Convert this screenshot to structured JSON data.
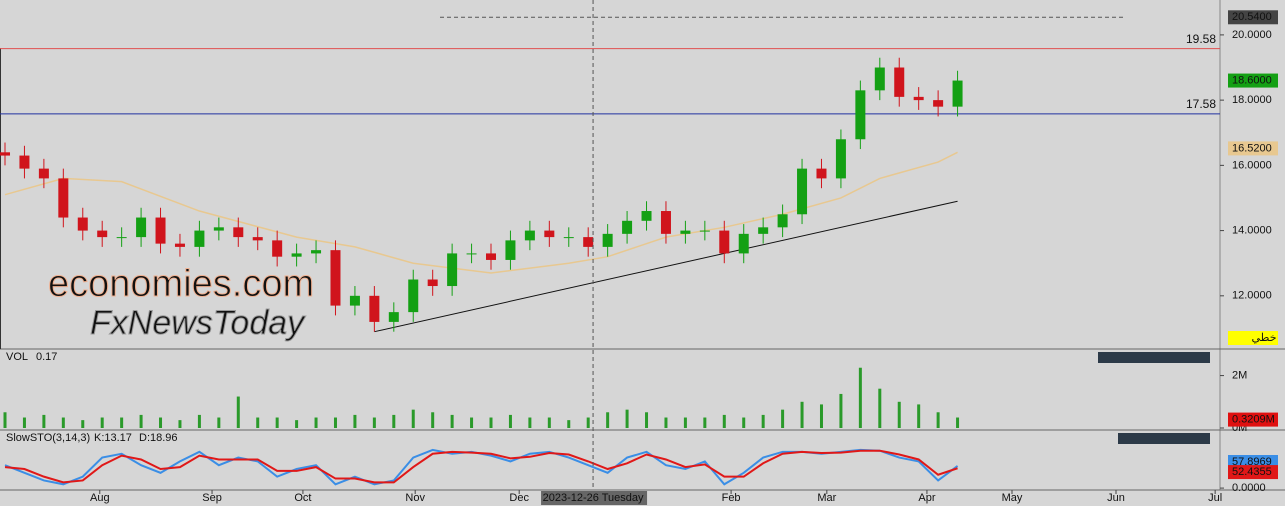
{
  "chart_data": [
    {
      "type": "candlestick",
      "x": [
        0,
        4,
        8,
        12,
        16,
        20,
        24,
        28,
        32,
        36,
        40,
        44,
        48,
        52,
        56,
        60,
        64,
        68,
        72,
        76,
        80,
        84,
        88,
        92,
        96,
        100,
        104,
        108,
        112,
        116,
        120,
        124,
        128,
        132,
        136,
        140,
        144,
        148,
        152,
        156,
        160,
        164,
        168,
        172,
        176,
        180,
        184,
        188,
        192,
        196
      ],
      "open": [
        16.4,
        16.3,
        15.9,
        15.6,
        14.4,
        14.0,
        13.8,
        13.8,
        14.4,
        13.6,
        13.5,
        14.0,
        14.1,
        13.8,
        13.7,
        13.2,
        13.3,
        13.4,
        11.7,
        12.0,
        11.2,
        11.5,
        12.5,
        12.3,
        13.3,
        13.3,
        13.1,
        13.7,
        14.0,
        13.8,
        13.8,
        13.5,
        13.9,
        14.3,
        14.6,
        13.9,
        14.0,
        14.0,
        13.3,
        13.9,
        14.1,
        14.5,
        15.9,
        15.6,
        16.8,
        18.3,
        19.0,
        18.1,
        18.0,
        17.8
      ],
      "high": [
        16.7,
        16.6,
        16.2,
        15.9,
        14.7,
        14.3,
        14.1,
        14.7,
        14.7,
        13.9,
        14.3,
        14.4,
        14.4,
        14.1,
        14.0,
        13.6,
        13.7,
        13.7,
        12.3,
        12.3,
        11.8,
        12.8,
        12.8,
        13.6,
        13.6,
        13.6,
        14.0,
        14.3,
        14.3,
        14.1,
        14.1,
        14.2,
        14.6,
        14.9,
        14.9,
        14.3,
        14.3,
        14.3,
        14.2,
        14.4,
        14.8,
        16.2,
        16.2,
        17.1,
        18.6,
        19.3,
        19.3,
        18.4,
        18.3,
        18.9
      ],
      "low": [
        16.0,
        15.6,
        15.3,
        14.1,
        13.7,
        13.5,
        13.5,
        13.5,
        13.3,
        13.2,
        13.2,
        13.7,
        13.5,
        13.4,
        12.9,
        12.9,
        13.0,
        11.4,
        11.4,
        10.9,
        10.9,
        11.2,
        12.0,
        12.0,
        13.0,
        12.8,
        12.8,
        13.4,
        13.5,
        13.5,
        13.2,
        13.2,
        13.6,
        14.0,
        13.6,
        13.6,
        13.7,
        13.0,
        13.0,
        13.6,
        13.8,
        14.2,
        15.3,
        15.3,
        16.5,
        18.0,
        17.8,
        17.7,
        17.5,
        17.5
      ],
      "close": [
        16.3,
        15.9,
        15.6,
        14.4,
        14.0,
        13.8,
        13.8,
        14.4,
        13.6,
        13.5,
        14.0,
        14.1,
        13.8,
        13.7,
        13.2,
        13.3,
        13.4,
        11.7,
        12.0,
        11.2,
        11.5,
        12.5,
        12.3,
        13.3,
        13.3,
        13.1,
        13.7,
        14.0,
        13.8,
        13.8,
        13.5,
        13.9,
        14.3,
        14.6,
        13.9,
        14.0,
        14.0,
        13.3,
        13.9,
        14.1,
        14.5,
        15.9,
        15.6,
        16.8,
        18.3,
        19.0,
        18.1,
        18.0,
        17.8,
        18.6
      ],
      "up_color": "#14a014",
      "down_color": "#d0141c",
      "xlim": [
        -1.03,
        250
      ],
      "ylim": [
        10.4,
        21.07
      ],
      "yticks": [
        {
          "value": 12,
          "label": "12.0000"
        },
        {
          "value": 14,
          "label": "14.0000"
        },
        {
          "value": 16,
          "label": "16.0000"
        },
        {
          "value": 18,
          "label": "18.0000"
        },
        {
          "value": 20,
          "label": "20.0000"
        }
      ],
      "moving_average": {
        "color": "#e8c890",
        "x": [
          0,
          12,
          24,
          40,
          60,
          72,
          84,
          100,
          116,
          124,
          136,
          148,
          160,
          172,
          180,
          192,
          196
        ],
        "values": [
          15.1,
          15.6,
          15.5,
          14.6,
          13.8,
          13.5,
          13.0,
          12.7,
          13.0,
          13.2,
          13.8,
          14.1,
          14.5,
          15.0,
          15.6,
          16.1,
          16.4
        ]
      },
      "levels": [
        {
          "value": 19.58,
          "label": "19.58",
          "color": "#e05050"
        },
        {
          "value": 17.58,
          "label": "17.58",
          "color": "#2030a0"
        }
      ],
      "trendline": {
        "x": [
          76,
          196
        ],
        "values": [
          10.9,
          14.9
        ]
      },
      "crosshair_price": {
        "value": 20.54,
        "label": "20.5400"
      },
      "last_price": {
        "value": 18.6,
        "label": "18.6000"
      },
      "ma_last": {
        "value": 16.52,
        "label": "16.5200"
      },
      "mode_label": "خطي",
      "watermark": [
        "economies.com",
        "FxNewsToday"
      ]
    },
    {
      "type": "bar",
      "title": "VOL",
      "subtitle": "0.17",
      "color": "#2a9a2a",
      "x": [
        0,
        4,
        8,
        12,
        16,
        20,
        24,
        28,
        32,
        36,
        40,
        44,
        48,
        52,
        56,
        60,
        64,
        68,
        72,
        76,
        80,
        84,
        88,
        92,
        96,
        100,
        104,
        108,
        112,
        116,
        120,
        124,
        128,
        132,
        136,
        140,
        144,
        148,
        152,
        156,
        160,
        164,
        168,
        172,
        176,
        180,
        184,
        188,
        192,
        196
      ],
      "values": [
        0.6,
        0.4,
        0.5,
        0.4,
        0.3,
        0.4,
        0.4,
        0.5,
        0.4,
        0.3,
        0.5,
        0.4,
        1.2,
        0.4,
        0.4,
        0.3,
        0.4,
        0.4,
        0.5,
        0.4,
        0.5,
        0.7,
        0.6,
        0.5,
        0.4,
        0.4,
        0.5,
        0.4,
        0.4,
        0.3,
        0.4,
        0.6,
        0.7,
        0.6,
        0.4,
        0.4,
        0.4,
        0.5,
        0.4,
        0.5,
        0.7,
        1.0,
        0.9,
        1.3,
        2.3,
        1.5,
        1.0,
        0.9,
        0.6,
        0.4
      ],
      "xlim": [
        -1.03,
        250
      ],
      "ylim": [
        0,
        2.9
      ],
      "yticks": [
        {
          "value": 0,
          "label": "0M"
        },
        {
          "value": 2,
          "label": "2M"
        }
      ],
      "last": {
        "value": 0.3209,
        "label": "0.3209M"
      }
    },
    {
      "type": "line",
      "title": "SlowSTO(3,14,3)",
      "x": [
        0,
        4,
        8,
        12,
        16,
        20,
        24,
        28,
        32,
        36,
        40,
        44,
        48,
        52,
        56,
        60,
        64,
        68,
        72,
        76,
        80,
        84,
        88,
        92,
        96,
        100,
        104,
        108,
        112,
        116,
        120,
        124,
        128,
        132,
        136,
        140,
        144,
        148,
        152,
        156,
        160,
        164,
        168,
        172,
        176,
        180,
        184,
        188,
        192,
        196
      ],
      "series": [
        {
          "name": "K:13.17",
          "color": "#3a8ee6",
          "values": [
            60,
            40,
            20,
            10,
            30,
            80,
            90,
            60,
            40,
            70,
            95,
            60,
            80,
            70,
            30,
            50,
            60,
            10,
            30,
            10,
            20,
            80,
            100,
            90,
            95,
            85,
            70,
            90,
            95,
            80,
            60,
            40,
            80,
            95,
            60,
            50,
            70,
            10,
            40,
            80,
            95,
            95,
            90,
            95,
            100,
            98,
            80,
            70,
            20,
            58
          ],
          "last": {
            "value": 57.8969,
            "label": "57.8969"
          }
        },
        {
          "name": "D:18.96",
          "color": "#e01818",
          "values": [
            55,
            50,
            30,
            15,
            20,
            60,
            85,
            75,
            50,
            55,
            85,
            75,
            75,
            75,
            45,
            45,
            55,
            25,
            25,
            15,
            15,
            55,
            90,
            95,
            93,
            90,
            78,
            82,
            92,
            88,
            70,
            50,
            65,
            88,
            75,
            55,
            62,
            30,
            30,
            65,
            90,
            95,
            92,
            93,
            98,
            98,
            88,
            75,
            35,
            52
          ],
          "last": {
            "value": 52.4355,
            "label": "52.4355"
          }
        }
      ],
      "xlim": [
        -1.03,
        250
      ],
      "ylim": [
        -5,
        147
      ],
      "yticks": [
        {
          "value": 0,
          "label": "0.0000"
        }
      ],
      "xticks": [
        {
          "value": 19.5,
          "label": "Aug"
        },
        {
          "value": 42.6,
          "label": "Sep"
        },
        {
          "value": 61.3,
          "label": "Oct"
        },
        {
          "value": 84.4,
          "label": "Nov"
        },
        {
          "value": 105.8,
          "label": "Dec"
        },
        {
          "value": 149.4,
          "label": "Feb"
        },
        {
          "value": 169.1,
          "label": "Mar"
        },
        {
          "value": 189.7,
          "label": "Apr"
        },
        {
          "value": 207.2,
          "label": "May"
        },
        {
          "value": 228.6,
          "label": "Jun"
        },
        {
          "value": 249,
          "label": "Jul"
        }
      ],
      "crosshair": {
        "value": 121,
        "label": "2023-12-26 Tuesday"
      }
    }
  ]
}
